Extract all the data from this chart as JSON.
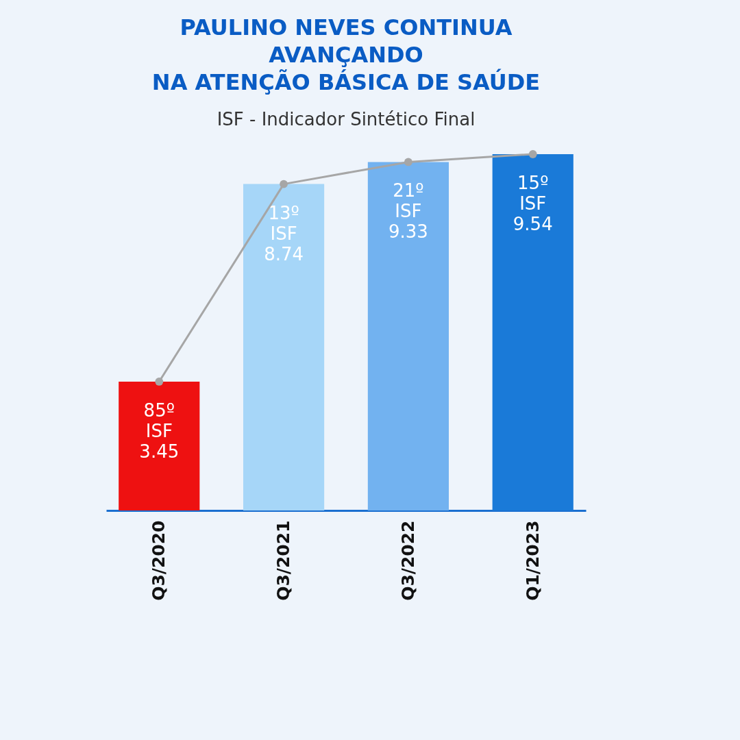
{
  "chart_data": {
    "type": "bar",
    "title": "PAULINO NEVES CONTINUA\nAVANÇANDO\nNA ATENÇÃO BÁSICA DE SAÚDE",
    "subtitle": "ISF - Indicador Sintético Final",
    "categories": [
      "Q3/2020",
      "Q3/2021",
      "Q3/2022",
      "Q1/2023"
    ],
    "series": [
      {
        "colors": [
          "#ee1111",
          "#a6d6f8",
          "#72b2f0",
          "#1a7ad8"
        ],
        "values": [
          3.45,
          8.74,
          9.33,
          9.54
        ],
        "value_labels": [
          "85º\nISF\n3.45",
          "13º\nISF\n8.74",
          "21º\nISF\n9.33",
          "15º\nISF\n9.54"
        ]
      },
      {
        "type": "line",
        "color": "#a6a6a6",
        "marker": "circle",
        "values": [
          3.45,
          8.74,
          9.33,
          9.54
        ]
      }
    ]
  }
}
